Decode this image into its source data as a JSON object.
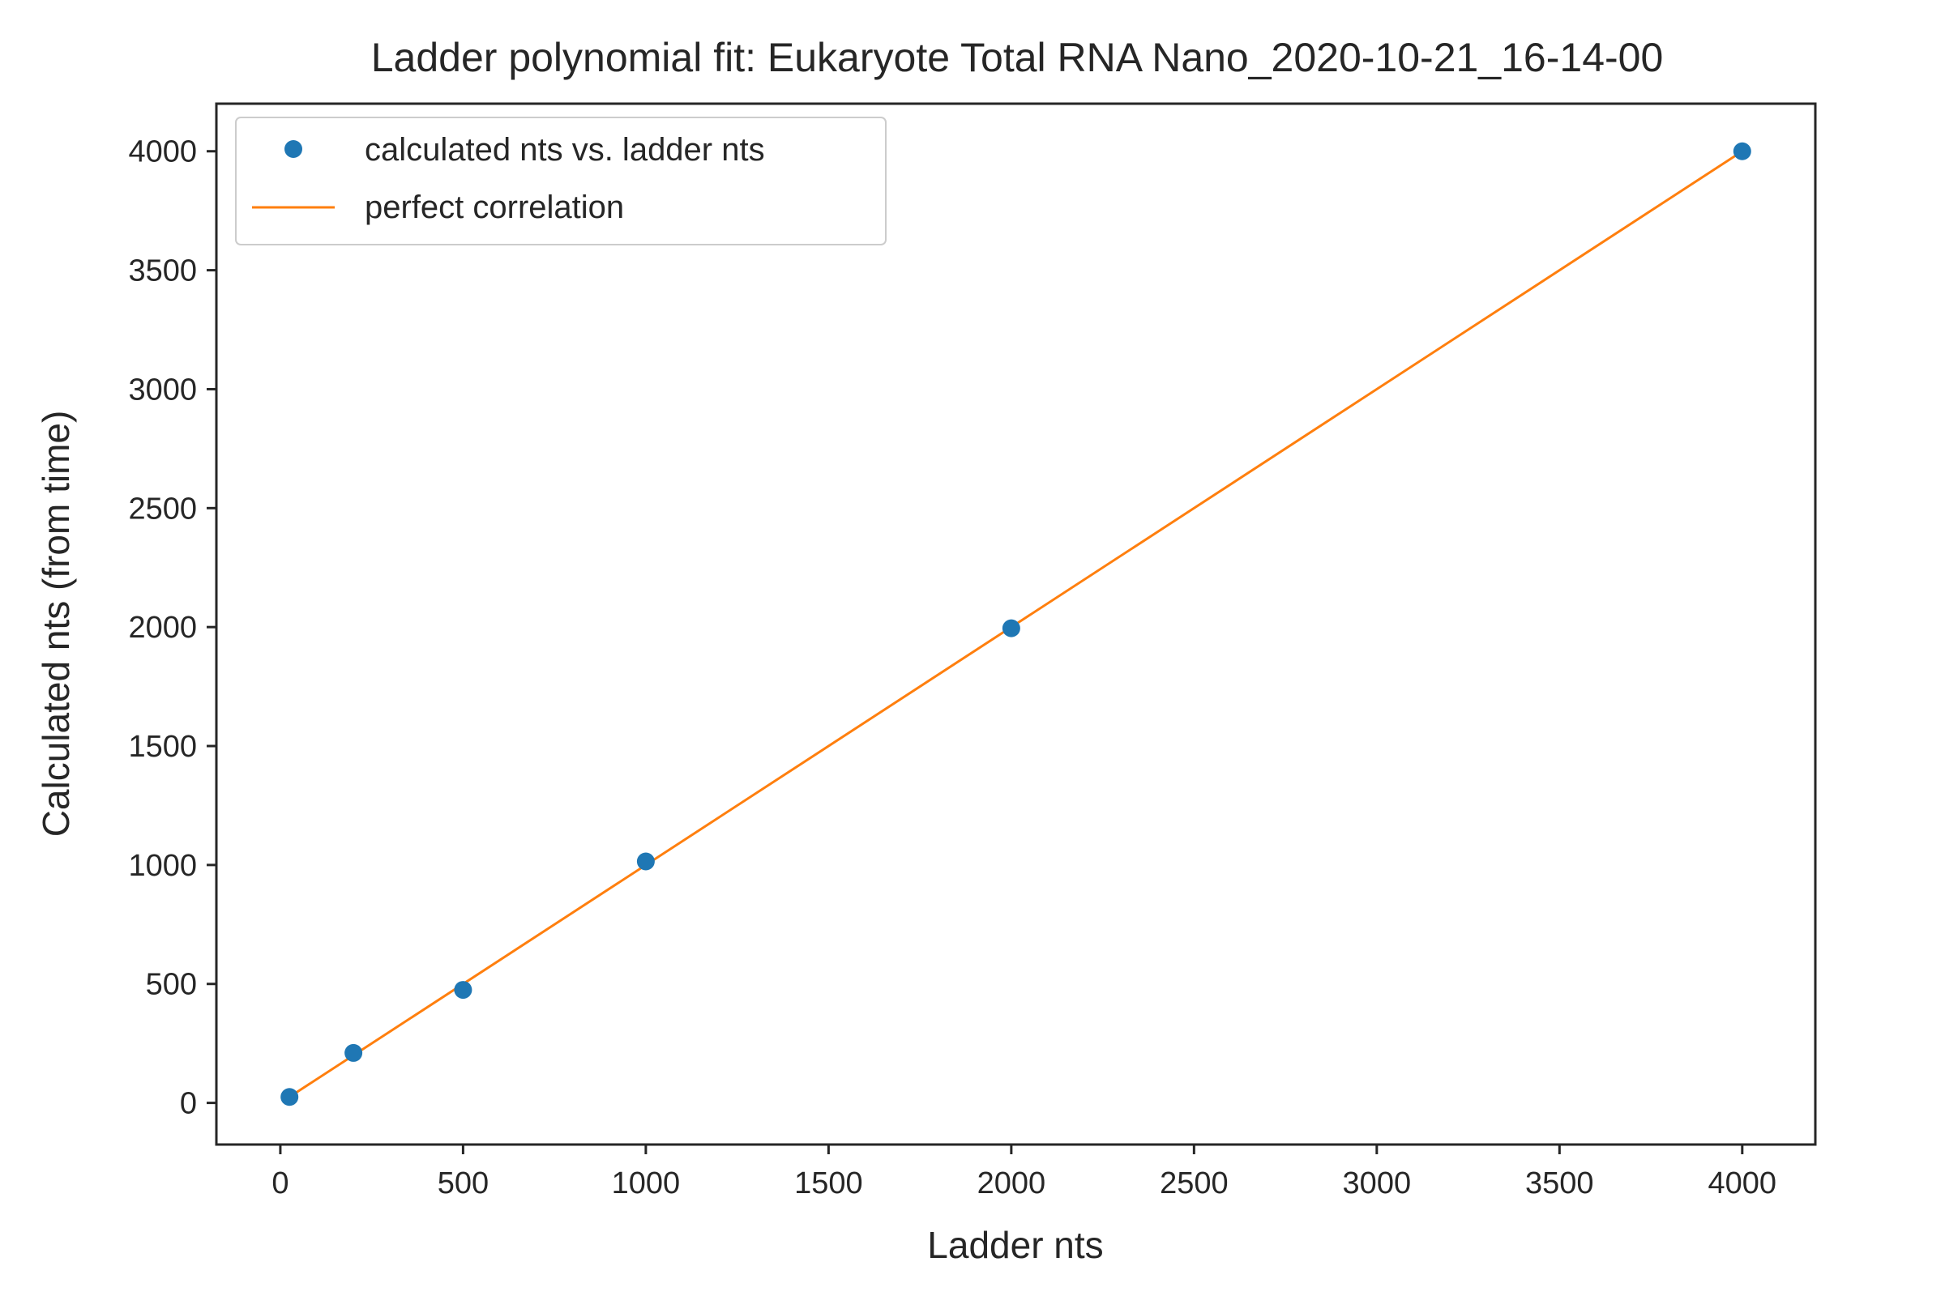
{
  "chart_data": {
    "type": "scatter",
    "title": "Ladder polynomial fit: Eukaryote Total RNA Nano_2020-10-21_16-14-00",
    "xlabel": "Ladder nts",
    "ylabel": "Calculated nts (from time)",
    "xlim": [
      -175,
      4200
    ],
    "ylim": [
      -175,
      4200
    ],
    "xticks": [
      0,
      500,
      1000,
      1500,
      2000,
      2500,
      3000,
      3500,
      4000
    ],
    "yticks": [
      0,
      500,
      1000,
      1500,
      2000,
      2500,
      3000,
      3500,
      4000
    ],
    "grid": false,
    "legend_position": "top-left",
    "series": [
      {
        "name": "calculated nts vs. ladder nts",
        "kind": "points",
        "color": "#1f77b4",
        "x": [
          25,
          200,
          500,
          1000,
          2000,
          4000
        ],
        "y": [
          25,
          210,
          475,
          1015,
          1995,
          4000
        ]
      },
      {
        "name": "perfect correlation",
        "kind": "line",
        "color": "#ff7f0e",
        "x": [
          25,
          4000
        ],
        "y": [
          25,
          4000
        ]
      }
    ]
  }
}
